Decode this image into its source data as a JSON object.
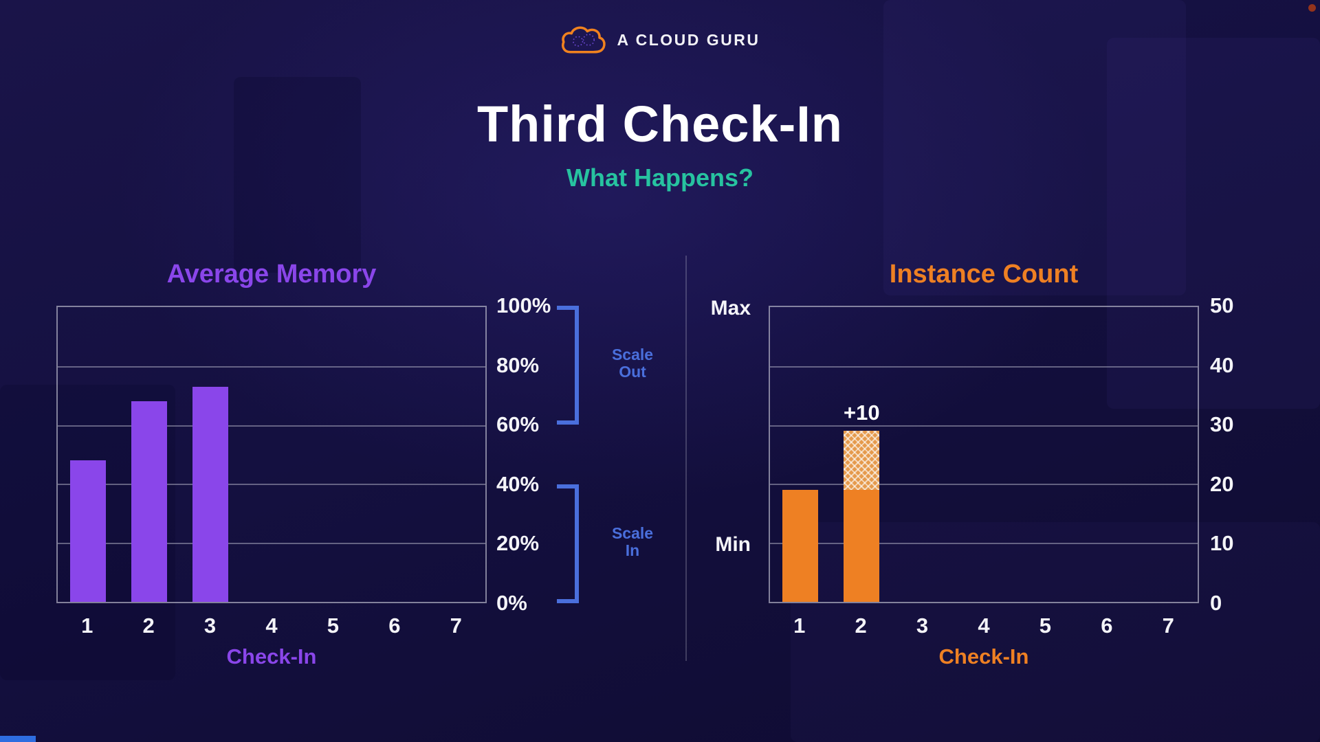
{
  "page": {
    "logo_text": "A CLOUD GURU",
    "title": "Third Check-In",
    "subtitle": "What Happens?"
  },
  "colors": {
    "background": "#141040",
    "purple": "#8a46ea",
    "orange": "#ee8023",
    "teal": "#27c3a0",
    "bracket_blue": "#4a6fdc",
    "text": "#ffffff"
  },
  "chart_data": [
    {
      "type": "bar",
      "title": "Average Memory",
      "xlabel": "Check-In",
      "ylabel": "",
      "categories": [
        "1",
        "2",
        "3",
        "4",
        "5",
        "6",
        "7"
      ],
      "values": [
        48,
        68,
        73,
        null,
        null,
        null,
        null
      ],
      "ylim": [
        0,
        100
      ],
      "ytick_labels": [
        "100%",
        "80%",
        "60%",
        "40%",
        "20%",
        "0%"
      ],
      "grid": true,
      "legend_position": "none",
      "bar_color": "#8a46ea",
      "annotations": [
        {
          "line1": "Scale",
          "line2": "Out",
          "from": 60,
          "to": 100
        },
        {
          "line1": "Scale",
          "line2": "In",
          "from": 0,
          "to": 40
        }
      ]
    },
    {
      "type": "bar",
      "title": "Instance Count",
      "xlabel": "Check-In",
      "ylabel": "",
      "categories": [
        "1",
        "2",
        "3",
        "4",
        "5",
        "6",
        "7"
      ],
      "values": [
        19,
        19,
        null,
        null,
        null,
        null,
        null
      ],
      "added_values": [
        0,
        10,
        null,
        null,
        null,
        null,
        null
      ],
      "stack_annotation": {
        "text": "+10",
        "category_index": 1
      },
      "ylim": [
        0,
        50
      ],
      "ytick_labels": [
        "50",
        "40",
        "30",
        "20",
        "10",
        "0"
      ],
      "grid": true,
      "legend_position": "none",
      "bar_color": "#ee8023",
      "max_label": "Max",
      "min_label": "Min",
      "max_value": 50,
      "min_value": 10
    }
  ]
}
